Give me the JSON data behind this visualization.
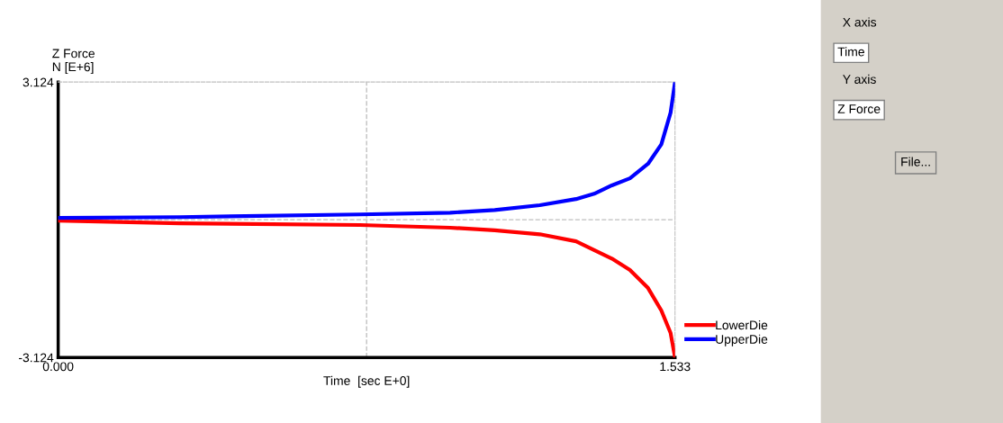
{
  "chart_data": {
    "type": "line",
    "xlabel": "Time  [sec E+0]",
    "ylabel": "Z Force\nN [E+6]",
    "xlim": [
      0,
      1.533
    ],
    "ylim": [
      -3.124,
      3.124
    ],
    "xticks": [
      {
        "value": 0,
        "label": "0.000"
      },
      {
        "value": 1.533,
        "label": "1.533"
      }
    ],
    "yticks": [
      {
        "value": -3.124,
        "label": "-3.124"
      },
      {
        "value": 3.124,
        "label": "3.124"
      }
    ],
    "ref_lines": [
      {
        "axis": "x",
        "value": 0.7665,
        "label": null,
        "color": "#c0c0c0",
        "line_style": "dashed"
      },
      {
        "axis": "y",
        "value": 0,
        "label": null,
        "color": "#c0c0c0",
        "line_style": "dashed"
      }
    ],
    "legend": "right",
    "grid": false,
    "marker": "none",
    "line_style": "solid",
    "series": [
      {
        "name": "LowerDie",
        "color": "#ff0000",
        "x": [
          0,
          0.302,
          0.75,
          0.974,
          1.085,
          1.197,
          1.287,
          1.332,
          1.376,
          1.421,
          1.466,
          1.499,
          1.522,
          1.533
        ],
        "values": [
          -0.02,
          -0.08,
          -0.12,
          -0.18,
          -0.24,
          -0.33,
          -0.49,
          -0.69,
          -0.88,
          -1.14,
          -1.55,
          -2.06,
          -2.57,
          -3.124
        ]
      },
      {
        "name": "UpperDie",
        "color": "#0000ff",
        "x": [
          0,
          0.302,
          0.75,
          0.974,
          1.085,
          1.197,
          1.287,
          1.332,
          1.376,
          1.421,
          1.466,
          1.499,
          1.522,
          1.533
        ],
        "values": [
          0.04,
          0.06,
          0.12,
          0.16,
          0.22,
          0.33,
          0.47,
          0.59,
          0.78,
          0.94,
          1.27,
          1.71,
          2.43,
          3.124
        ]
      }
    ],
    "annotations": [
      "X axis",
      "Time",
      "Y axis",
      "Z Force",
      "File..."
    ]
  }
}
